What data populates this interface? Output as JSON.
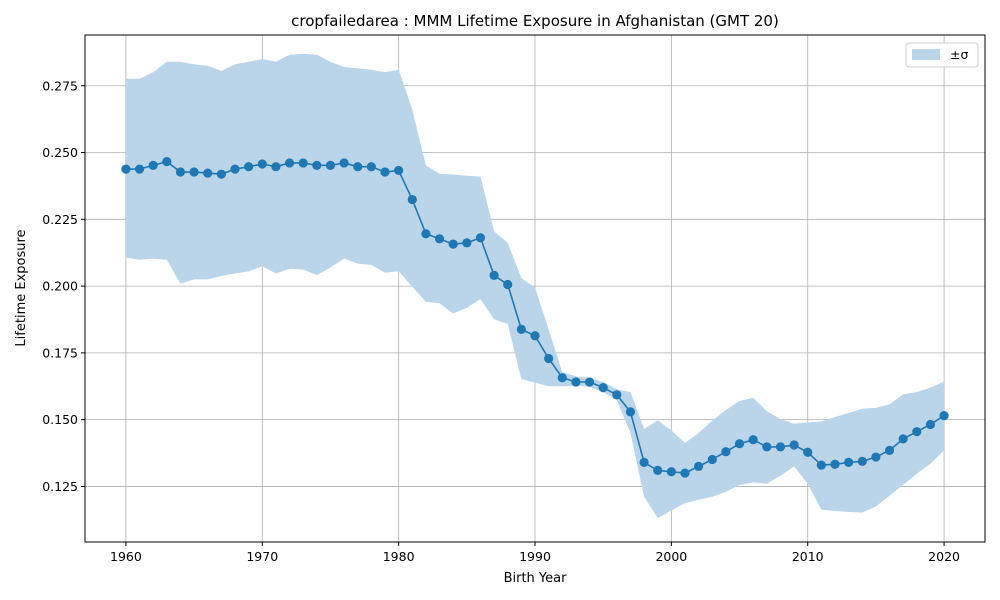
{
  "chart_data": {
    "type": "line",
    "title": "cropfailedarea : MMM Lifetime Exposure in Afghanistan (GMT 20)",
    "xlabel": "Birth Year",
    "ylabel": "Lifetime Exposure",
    "xlim": [
      1957,
      2023
    ],
    "ylim": [
      0.1042,
      0.294
    ],
    "xticks": [
      1960,
      1970,
      1980,
      1990,
      2000,
      2010,
      2020
    ],
    "xtick_labels": [
      "1960",
      "1970",
      "1980",
      "1990",
      "2000",
      "2010",
      "2020"
    ],
    "yticks": [
      0.125,
      0.15,
      0.175,
      0.2,
      0.225,
      0.25,
      0.275
    ],
    "ytick_labels": [
      "0.125",
      "0.150",
      "0.175",
      "0.200",
      "0.225",
      "0.250",
      "0.275"
    ],
    "grid": true,
    "legend_position": "top-right",
    "legend": [
      {
        "label": "±σ",
        "color": "#bad5ea"
      }
    ],
    "colors": {
      "line": "#1f77b4",
      "band": "#bad5ea",
      "grid": "#b0b0b0"
    },
    "x": [
      1960,
      1961,
      1962,
      1963,
      1964,
      1965,
      1966,
      1967,
      1968,
      1969,
      1970,
      1971,
      1972,
      1973,
      1974,
      1975,
      1976,
      1977,
      1978,
      1979,
      1980,
      1981,
      1982,
      1983,
      1984,
      1985,
      1986,
      1987,
      1988,
      1989,
      1990,
      1991,
      1992,
      1993,
      1994,
      1995,
      1996,
      1997,
      1998,
      1999,
      2000,
      2001,
      2002,
      2003,
      2004,
      2005,
      2006,
      2007,
      2008,
      2009,
      2010,
      2011,
      2012,
      2013,
      2014,
      2015,
      2016,
      2017,
      2018,
      2019,
      2020
    ],
    "series": [
      {
        "values": [
          0.2438,
          0.2438,
          0.2452,
          0.2466,
          0.2427,
          0.2427,
          0.2423,
          0.2419,
          0.2438,
          0.2447,
          0.2457,
          0.2447,
          0.2461,
          0.2461,
          0.2452,
          0.2452,
          0.2461,
          0.2447,
          0.2447,
          0.2427,
          0.2433,
          0.2324,
          0.2196,
          0.2177,
          0.2157,
          0.2162,
          0.2181,
          0.204,
          0.2006,
          0.1838,
          0.1814,
          0.1729,
          0.1657,
          0.1641,
          0.1641,
          0.162,
          0.1593,
          0.1529,
          0.134,
          0.131,
          0.1305,
          0.13,
          0.1325,
          0.1351,
          0.138,
          0.141,
          0.1425,
          0.1398,
          0.1398,
          0.1405,
          0.1378,
          0.133,
          0.1333,
          0.134,
          0.1344,
          0.136,
          0.1385,
          0.1428,
          0.1455,
          0.1482,
          0.1515
        ],
        "upper": [
          0.2776,
          0.2776,
          0.2801,
          0.284,
          0.284,
          0.283,
          0.2825,
          0.2805,
          0.283,
          0.284,
          0.285,
          0.284,
          0.2866,
          0.287,
          0.2866,
          0.284,
          0.282,
          0.2815,
          0.281,
          0.2801,
          0.281,
          0.2661,
          0.2452,
          0.242,
          0.2418,
          0.2413,
          0.241,
          0.2205,
          0.2162,
          0.203,
          0.1995,
          0.1838,
          0.1678,
          0.1662,
          0.1657,
          0.1641,
          0.1614,
          0.1603,
          0.1465,
          0.1498,
          0.146,
          0.1413,
          0.145,
          0.1497,
          0.1536,
          0.157,
          0.1582,
          0.1532,
          0.1502,
          0.1485,
          0.149,
          0.1493,
          0.151,
          0.1525,
          0.1541,
          0.1544,
          0.1557,
          0.1595,
          0.1603,
          0.162,
          0.1643
        ],
        "lower": [
          0.2107,
          0.2098,
          0.2103,
          0.2098,
          0.2009,
          0.2025,
          0.2025,
          0.2038,
          0.2047,
          0.2055,
          0.2074,
          0.2047,
          0.2065,
          0.2062,
          0.2041,
          0.2069,
          0.2103,
          0.2084,
          0.2079,
          0.205,
          0.2055,
          0.1998,
          0.1941,
          0.1936,
          0.1897,
          0.1919,
          0.1951,
          0.1876,
          0.1858,
          0.1652,
          0.1638,
          0.1625,
          0.1625,
          0.1627,
          0.1623,
          0.1603,
          0.1573,
          0.145,
          0.1212,
          0.1131,
          0.116,
          0.1187,
          0.12,
          0.1211,
          0.123,
          0.1255,
          0.1265,
          0.126,
          0.129,
          0.1325,
          0.126,
          0.1163,
          0.1158,
          0.1155,
          0.1152,
          0.1175,
          0.1215,
          0.1256,
          0.1298,
          0.1335,
          0.1385
        ]
      }
    ]
  }
}
